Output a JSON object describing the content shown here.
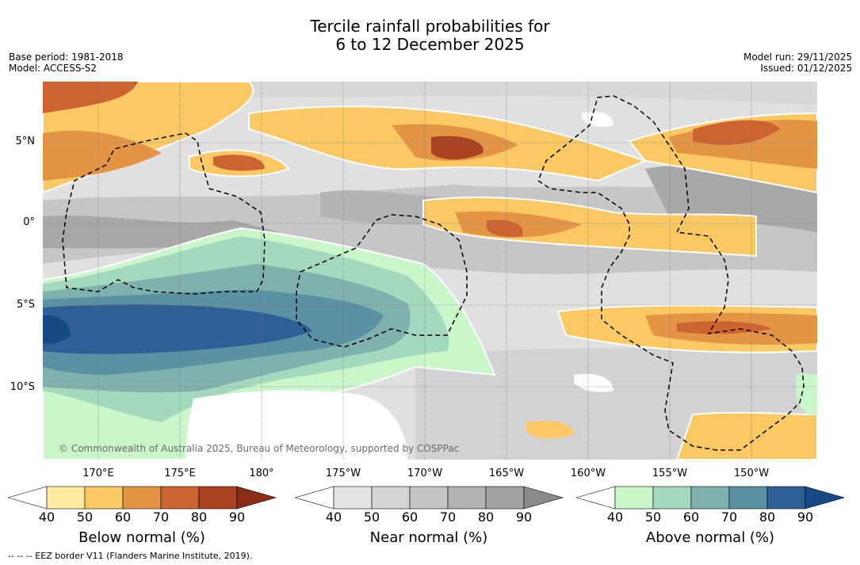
{
  "title": {
    "line1": "Tercile rainfall probabilities for",
    "line2": "6 to 12 December 2025"
  },
  "meta_left": {
    "base_period": "Base period: 1981-2018",
    "model": "Model: ACCESS-S2"
  },
  "meta_right": {
    "model_run": "Model run: 29/11/2025",
    "issued": "Issued: 01/12/2025"
  },
  "map": {
    "latitudes": [
      "5°N",
      "0°",
      "5°S",
      "10°S"
    ],
    "longitudes": [
      "170°E",
      "175°E",
      "180°",
      "175°W",
      "170°W",
      "165°W",
      "160°W",
      "155°W",
      "150°W"
    ],
    "copyright": "© Commonwealth of Australia 2025, Bureau of Meteorology, supported by COSPPac",
    "colors": {
      "ocean_near": "#e2e2e2",
      "gridline": "#777777",
      "eez": "#000000"
    }
  },
  "colorbars": [
    {
      "title": "Below normal (%)",
      "ticks": [
        "40",
        "50",
        "60",
        "70",
        "80",
        "90"
      ],
      "colors": [
        "#ffffff",
        "#feeda0",
        "#fbc963",
        "#e39545",
        "#cd6331",
        "#ab4323",
        "#8a2c16"
      ]
    },
    {
      "title": "Near normal (%)",
      "ticks": [
        "40",
        "50",
        "60",
        "70",
        "80",
        "90"
      ],
      "colors": [
        "#ffffff",
        "#e4e4e4",
        "#d4d4d4",
        "#c4c4c4",
        "#b2b2b2",
        "#a2a2a2",
        "#8a8a8a"
      ]
    },
    {
      "title": "Above normal (%)",
      "ticks": [
        "40",
        "50",
        "60",
        "70",
        "80",
        "90"
      ],
      "colors": [
        "#ffffff",
        "#c9f7ca",
        "#a4d9bd",
        "#80b2ad",
        "#5a92a4",
        "#2f6095",
        "#154a84"
      ]
    }
  ],
  "footer": "--  --  -- EEZ border V11 (Flanders Marine Institute, 2019)."
}
